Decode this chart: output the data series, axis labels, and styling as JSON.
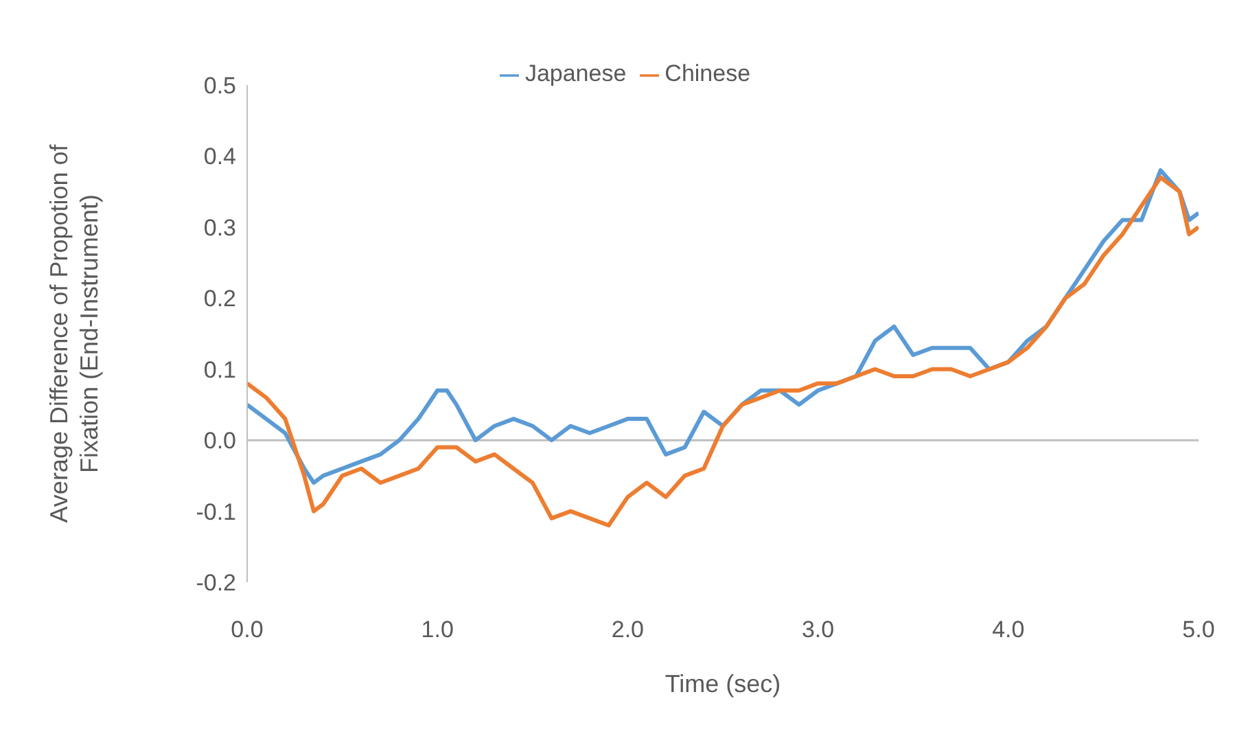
{
  "chart_data": {
    "type": "line",
    "xlabel": "Time (sec)",
    "ylabel": "Average Difference of Propotion of\nFixation (End-Instrument)",
    "x": [
      0.0,
      0.1,
      0.2,
      0.3,
      0.35,
      0.4,
      0.5,
      0.6,
      0.7,
      0.8,
      0.9,
      1.0,
      1.05,
      1.1,
      1.2,
      1.3,
      1.4,
      1.5,
      1.6,
      1.7,
      1.8,
      1.9,
      2.0,
      2.1,
      2.2,
      2.3,
      2.4,
      2.5,
      2.6,
      2.7,
      2.8,
      2.9,
      3.0,
      3.1,
      3.2,
      3.3,
      3.4,
      3.5,
      3.6,
      3.7,
      3.8,
      3.9,
      4.0,
      4.1,
      4.2,
      4.3,
      4.4,
      4.5,
      4.6,
      4.7,
      4.8,
      4.9,
      4.95,
      5.0
    ],
    "series": [
      {
        "name": "Japanese",
        "color": "#5b9bd5",
        "values": [
          0.05,
          0.03,
          0.01,
          -0.04,
          -0.06,
          -0.05,
          -0.04,
          -0.03,
          -0.02,
          0.0,
          0.03,
          0.07,
          0.07,
          0.05,
          0.0,
          0.02,
          0.03,
          0.02,
          0.0,
          0.02,
          0.01,
          0.02,
          0.03,
          0.03,
          -0.02,
          -0.01,
          0.04,
          0.02,
          0.05,
          0.07,
          0.07,
          0.05,
          0.07,
          0.08,
          0.09,
          0.14,
          0.16,
          0.12,
          0.13,
          0.13,
          0.13,
          0.1,
          0.11,
          0.14,
          0.16,
          0.2,
          0.24,
          0.28,
          0.31,
          0.31,
          0.38,
          0.35,
          0.31,
          0.32
        ]
      },
      {
        "name": "Chinese",
        "color": "#ed7d31",
        "values": [
          0.08,
          0.06,
          0.03,
          -0.05,
          -0.1,
          -0.09,
          -0.05,
          -0.04,
          -0.06,
          -0.05,
          -0.04,
          -0.01,
          -0.01,
          -0.01,
          -0.03,
          -0.02,
          -0.04,
          -0.06,
          -0.11,
          -0.1,
          -0.11,
          -0.12,
          -0.08,
          -0.06,
          -0.08,
          -0.05,
          -0.04,
          0.02,
          0.05,
          0.06,
          0.07,
          0.07,
          0.08,
          0.08,
          0.09,
          0.1,
          0.09,
          0.09,
          0.1,
          0.1,
          0.09,
          0.1,
          0.11,
          0.13,
          0.16,
          0.2,
          0.22,
          0.26,
          0.29,
          0.33,
          0.37,
          0.35,
          0.29,
          0.3
        ]
      }
    ],
    "xlim": [
      0,
      5
    ],
    "xticks": [
      {
        "value": 0,
        "label": "0.0"
      },
      {
        "value": 1,
        "label": "1.0"
      },
      {
        "value": 2,
        "label": "2.0"
      },
      {
        "value": 3,
        "label": "3.0"
      },
      {
        "value": 4,
        "label": "4.0"
      },
      {
        "value": 5,
        "label": "5.0"
      }
    ],
    "ylim": [
      -0.2,
      0.5
    ],
    "yticks": [
      {
        "value": -0.2,
        "label": "-0.2"
      },
      {
        "value": -0.1,
        "label": "-0.1"
      },
      {
        "value": 0,
        "label": "0.0"
      },
      0.1,
      0.2,
      0.3,
      0.4,
      0.5
    ],
    "legend": "top",
    "grid": false,
    "ref_lines": [
      {
        "axis": "y",
        "value": 0,
        "color": "#bfbfbf",
        "line_style": "solid"
      }
    ],
    "marker": "none",
    "line_style": "solid"
  }
}
